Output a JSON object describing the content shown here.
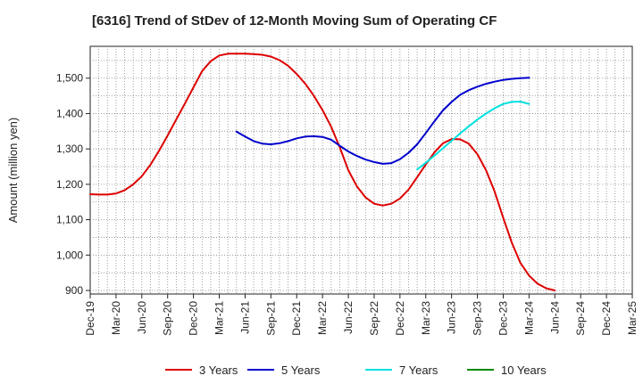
{
  "chart_data": {
    "type": "line",
    "title": "[6316]  Trend of StDev of 12-Month Moving Sum of Operating CF",
    "xlabel": "",
    "ylabel": "Amount (million yen)",
    "ylim": [
      890,
      1590
    ],
    "yticks": [
      900,
      1000,
      1100,
      1200,
      1300,
      1400,
      1500
    ],
    "ytick_labels": [
      "900",
      "1,000",
      "1,100",
      "1,200",
      "1,300",
      "1,400",
      "1,500"
    ],
    "x_tick_labels": [
      "Dec-19",
      "Mar-20",
      "Jun-20",
      "Sep-20",
      "Dec-20",
      "Mar-21",
      "Jun-21",
      "Sep-21",
      "Dec-21",
      "Mar-22",
      "Jun-22",
      "Sep-22",
      "Dec-22",
      "Mar-23",
      "Jun-23",
      "Sep-23",
      "Dec-23",
      "Mar-24",
      "Jun-24",
      "Sep-24",
      "Dec-24",
      "Mar-25"
    ],
    "x_start_label": "Dec-19",
    "grid": true,
    "legend_position": "bottom",
    "series": [
      {
        "name": "3 Years",
        "color": "#dd0000",
        "start_index": 0,
        "values": [
          1172,
          1171,
          1171,
          1174,
          1183,
          1200,
          1223,
          1255,
          1295,
          1338,
          1383,
          1428,
          1474,
          1520,
          1548,
          1564,
          1569,
          1569,
          1569,
          1568,
          1566,
          1561,
          1551,
          1535,
          1512,
          1484,
          1450,
          1410,
          1363,
          1305,
          1240,
          1194,
          1163,
          1145,
          1140,
          1145,
          1160,
          1185,
          1220,
          1256,
          1290,
          1316,
          1328,
          1327,
          1315,
          1285,
          1240,
          1180,
          1105,
          1035,
          978,
          942,
          919,
          906,
          900
        ]
      },
      {
        "name": "5 Years",
        "color": "#0000cc",
        "start_index": 17,
        "values": [
          1349,
          1335,
          1322,
          1315,
          1313,
          1316,
          1322,
          1330,
          1335,
          1336,
          1334,
          1326,
          1309,
          1293,
          1280,
          1270,
          1263,
          1258,
          1260,
          1271,
          1289,
          1313,
          1345,
          1378,
          1409,
          1433,
          1453,
          1466,
          1476,
          1484,
          1490,
          1495,
          1498,
          1500,
          1501
        ]
      },
      {
        "name": "7 Years",
        "color": "#00e0e0",
        "start_index": 38,
        "values": [
          1242,
          1261,
          1281,
          1302,
          1323,
          1344,
          1364,
          1383,
          1400,
          1415,
          1427,
          1433,
          1434,
          1427
        ]
      },
      {
        "name": "10 Years",
        "color": "#008800",
        "start_index": 0,
        "values": []
      }
    ]
  }
}
